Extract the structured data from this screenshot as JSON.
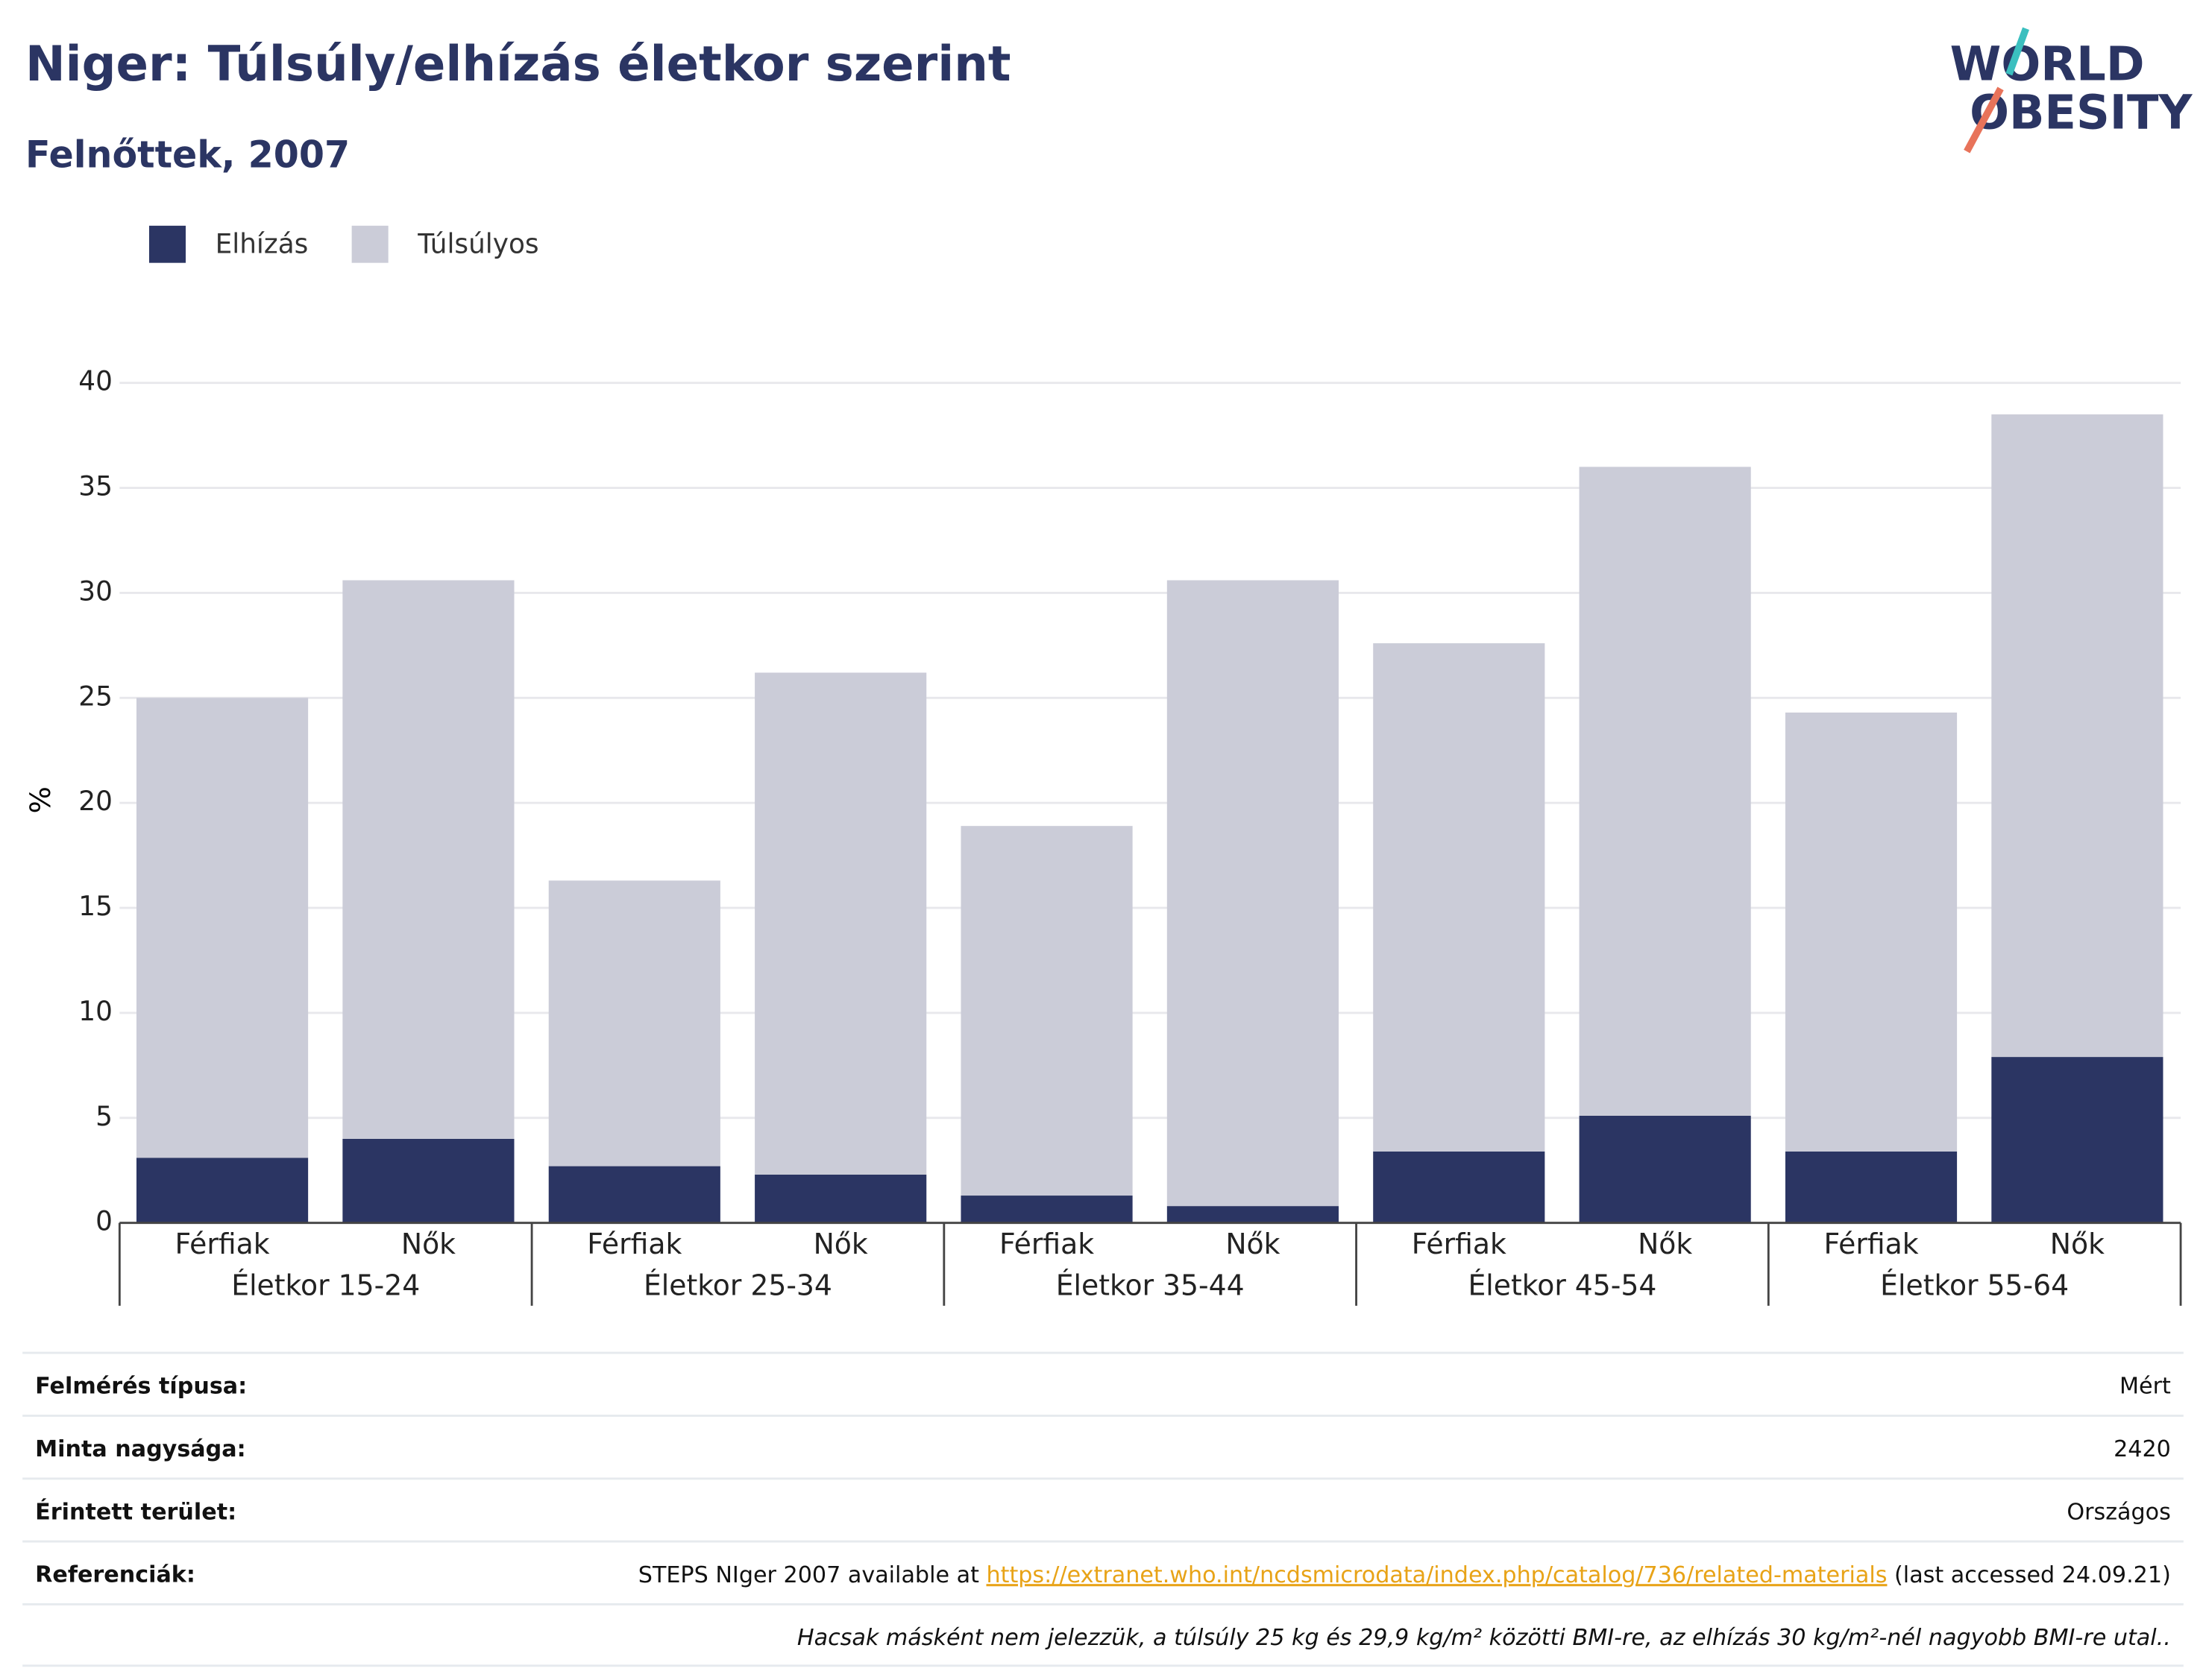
{
  "chart_data": {
    "type": "stacked_bar",
    "title": "Niger: Túlsúly/elhízás életkor szerint",
    "subtitle": "Felnőttek, 2007",
    "y_label": "%",
    "categories": [
      "Férfiak",
      "Nők",
      "Férfiak",
      "Nők",
      "Férfiak",
      "Nők",
      "Férfiak",
      "Nők",
      "Férfiak",
      "Nők"
    ],
    "groups": [
      "Életkor 15-24",
      "Életkor 25-34",
      "Életkor 35-44",
      "Életkor 45-54",
      "Életkor 55-64"
    ],
    "series": [
      {
        "name": "Elhízás",
        "color": "#2b3563",
        "values": [
          3.1,
          4.0,
          2.7,
          2.3,
          1.3,
          0.8,
          3.4,
          5.1,
          3.4,
          7.9
        ]
      },
      {
        "name": "Túlsúlyos",
        "color": "#cbccd8",
        "values": [
          21.9,
          26.6,
          13.6,
          23.9,
          17.6,
          29.8,
          24.2,
          30.9,
          20.9,
          30.6
        ]
      }
    ],
    "ylim": [
      0,
      40
    ],
    "yticks": [
      0,
      5,
      10,
      15,
      20,
      25,
      30,
      35,
      40
    ],
    "grid": true,
    "legend": "top-left"
  },
  "logo": {
    "line1": "WORLD",
    "line2": "OBESITY"
  },
  "table": {
    "rows": [
      [
        "Felmérés típusa:",
        "Mért"
      ],
      [
        "Minta nagysága:",
        "2420"
      ],
      [
        "Érintett terület:",
        "Országos"
      ]
    ],
    "references": {
      "label": "Referenciák:",
      "before": "STEPS NIger 2007 available at ",
      "link": "https://extranet.who.int/ncdsmicrodata/index.php/catalog/736/related-materials",
      "after": " (last accessed 24.09.21)"
    },
    "footnote": "Hacsak másként nem jelezzük, a túlsúly 25 kg és 29,9 kg/m² közötti BMI-re, az elhízás 30 kg/m²-nél nagyobb BMI-re utal.."
  }
}
